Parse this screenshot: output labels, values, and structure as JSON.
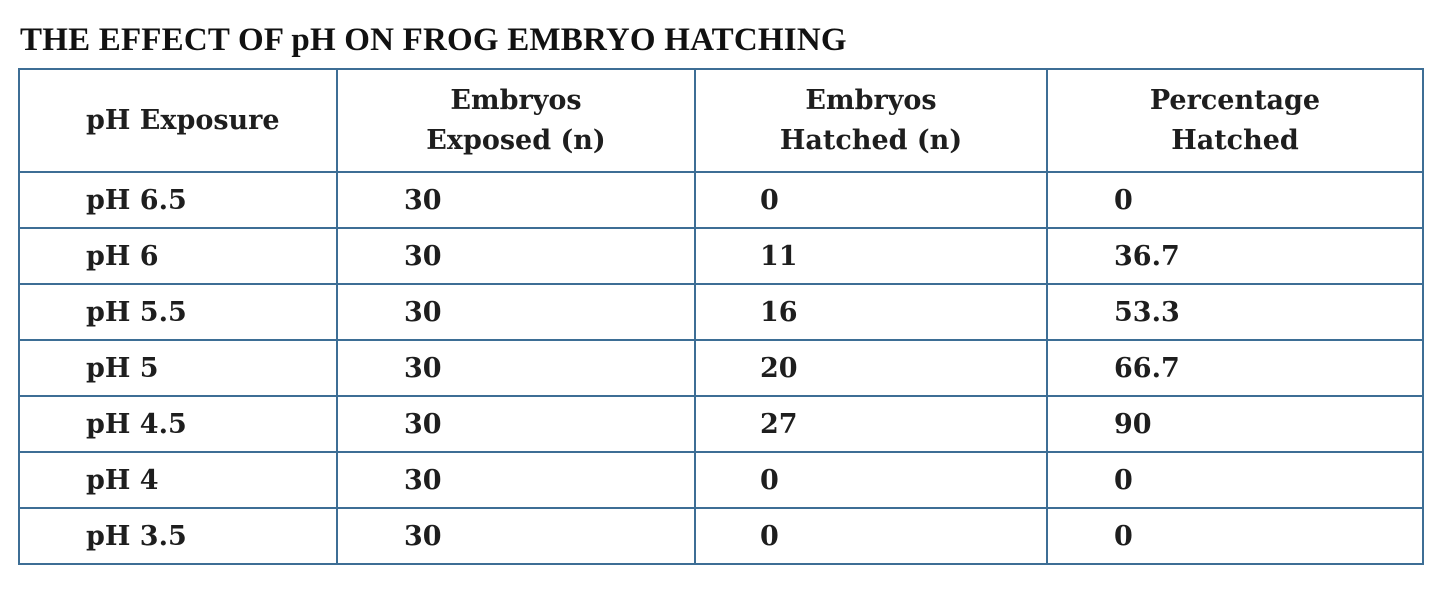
{
  "title": "THE EFFECT OF pH ON FROG EMBRYO HATCHING",
  "table": {
    "headers": [
      {
        "lines": [
          "pH Exposure"
        ]
      },
      {
        "lines": [
          "Embryos",
          "Exposed (n)"
        ]
      },
      {
        "lines": [
          "Embryos",
          "Hatched (n)"
        ]
      },
      {
        "lines": [
          "Percentage",
          "Hatched"
        ]
      }
    ],
    "rows": [
      [
        "pH 6.5",
        "30",
        "0",
        "0"
      ],
      [
        "pH 6",
        "30",
        "11",
        "36.7"
      ],
      [
        "pH 5.5",
        "30",
        "16",
        "53.3"
      ],
      [
        "pH 5",
        "30",
        "20",
        "66.7"
      ],
      [
        "pH 4.5",
        "30",
        "27",
        "90"
      ],
      [
        "pH 4",
        "30",
        "0",
        "0"
      ],
      [
        "pH 3.5",
        "30",
        "0",
        "0"
      ]
    ]
  }
}
